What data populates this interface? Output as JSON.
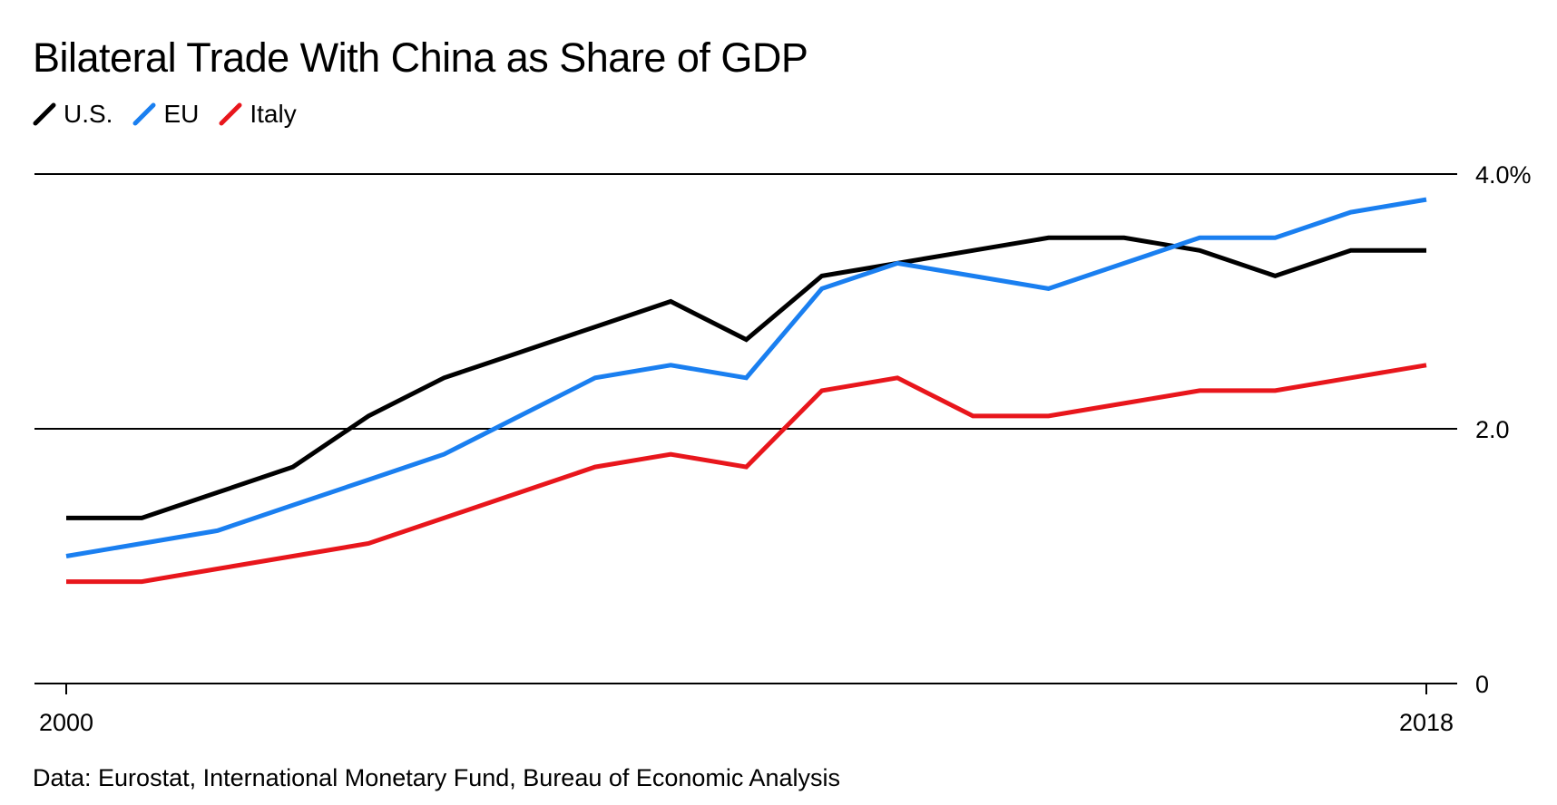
{
  "chart_data": {
    "type": "line",
    "title": "Bilateral Trade With China as Share of GDP",
    "x": [
      2000,
      2001,
      2002,
      2003,
      2004,
      2005,
      2006,
      2007,
      2008,
      2009,
      2010,
      2011,
      2012,
      2013,
      2014,
      2015,
      2016,
      2017,
      2018
    ],
    "series": [
      {
        "name": "U.S.",
        "color": "#000000",
        "values": [
          1.3,
          1.3,
          1.5,
          1.7,
          2.1,
          2.4,
          2.6,
          2.8,
          3.0,
          2.7,
          3.2,
          3.3,
          3.4,
          3.5,
          3.5,
          3.4,
          3.2,
          3.4,
          3.4
        ]
      },
      {
        "name": "EU",
        "color": "#1a7ff0",
        "values": [
          1.0,
          1.1,
          1.2,
          1.4,
          1.6,
          1.8,
          2.1,
          2.4,
          2.5,
          2.4,
          3.1,
          3.3,
          3.2,
          3.1,
          3.3,
          3.5,
          3.5,
          3.7,
          3.8
        ]
      },
      {
        "name": "Italy",
        "color": "#e8161c",
        "values": [
          0.8,
          0.8,
          0.9,
          1.0,
          1.1,
          1.3,
          1.5,
          1.7,
          1.8,
          1.7,
          2.3,
          2.4,
          2.1,
          2.1,
          2.2,
          2.3,
          2.3,
          2.4,
          2.5
        ]
      }
    ],
    "ylim": [
      0,
      4.0
    ],
    "yticks": [
      {
        "value": 4.0,
        "label": "4.0%"
      },
      {
        "value": 2.0,
        "label": "2.0"
      },
      {
        "value": 0,
        "label": "0"
      }
    ],
    "xticks": [
      {
        "value": 2000,
        "label": "2000"
      },
      {
        "value": 2018,
        "label": "2018"
      }
    ],
    "xlabel": "",
    "ylabel": "",
    "legend_position": "top-left"
  },
  "source": "Data: Eurostat, International Monetary Fund, Bureau of Economic Analysis"
}
